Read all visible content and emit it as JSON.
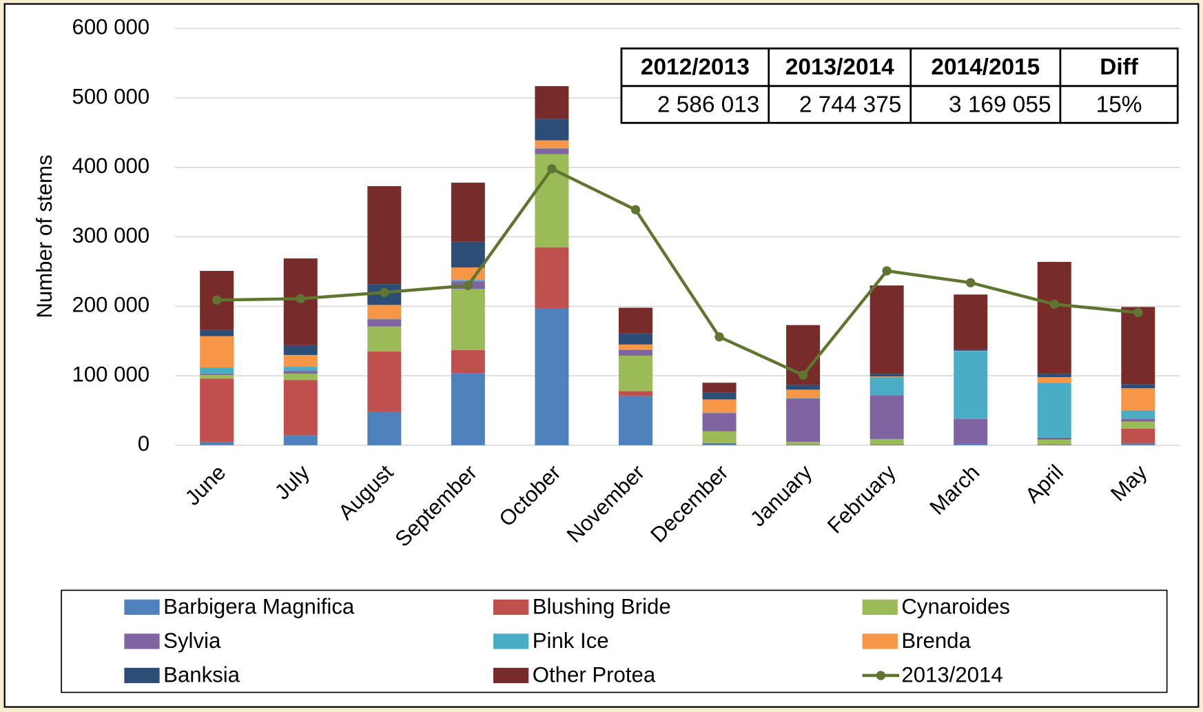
{
  "chart_data": {
    "type": "bar",
    "stacked": true,
    "ylabel": "Number of stems",
    "categories": [
      "June",
      "July",
      "August",
      "September",
      "October",
      "November",
      "December",
      "January",
      "February",
      "March",
      "April",
      "May"
    ],
    "series": [
      {
        "name": "Barbigera Magnifica",
        "color": "#4f81bd",
        "values": [
          5000,
          14000,
          48000,
          104000,
          197000,
          71000,
          3000,
          1000,
          1000,
          2000,
          1000,
          3000
        ]
      },
      {
        "name": "Blushing Bride",
        "color": "#c0504d",
        "values": [
          91000,
          80000,
          87000,
          33000,
          88000,
          7000,
          0,
          0,
          0,
          0,
          0,
          21000
        ]
      },
      {
        "name": "Cynaroides",
        "color": "#9bbb59",
        "values": [
          5000,
          9000,
          36000,
          88000,
          134000,
          51000,
          17000,
          4000,
          8000,
          0,
          7000,
          10000
        ]
      },
      {
        "name": "Sylvia",
        "color": "#8064a2",
        "values": [
          2000,
          4000,
          10000,
          11000,
          8000,
          8000,
          26000,
          62000,
          63000,
          36000,
          3000,
          4000
        ]
      },
      {
        "name": "Pink Ice",
        "color": "#4bacc6",
        "values": [
          9000,
          6000,
          1000,
          2000,
          1000,
          1000,
          1000,
          1000,
          26000,
          97000,
          79000,
          12000
        ]
      },
      {
        "name": "Brenda",
        "color": "#f79646",
        "values": [
          45000,
          17000,
          20000,
          18000,
          11000,
          7000,
          19000,
          12000,
          1000,
          1000,
          8000,
          32000
        ]
      },
      {
        "name": "Banksia",
        "color": "#2c4d75",
        "values": [
          9000,
          14000,
          30000,
          37000,
          31000,
          16000,
          10000,
          7000,
          4000,
          2000,
          5000,
          6000
        ]
      },
      {
        "name": "Other Protea",
        "color": "#772c2a",
        "values": [
          85000,
          125000,
          141000,
          85000,
          47000,
          37000,
          14000,
          86000,
          127000,
          79000,
          161000,
          111000
        ]
      },
      {
        "name": "2013/2014",
        "type": "line",
        "color": "#5f7530",
        "values": [
          209000,
          211000,
          220000,
          230000,
          398000,
          339000,
          156000,
          101000,
          251000,
          234000,
          203000,
          191000
        ]
      }
    ],
    "ylim": [
      0,
      600000
    ],
    "yticks": [
      0,
      {
        "value": 100000,
        "label": "100 000"
      },
      {
        "value": 200000,
        "label": "200 000"
      },
      {
        "value": 300000,
        "label": "300 000"
      },
      {
        "value": 400000,
        "label": "400 000"
      },
      {
        "value": 500000,
        "label": "500 000"
      },
      {
        "value": 600000,
        "label": "600 000"
      }
    ],
    "grid": true,
    "legend": "bottom",
    "table": {
      "header": [
        "2012/2013",
        "2013/2014",
        "2014/2015",
        "Diff"
      ],
      "rows": [
        [
          "2 586 013",
          "2 744 375",
          "3 169 055",
          "15%"
        ]
      ]
    }
  }
}
